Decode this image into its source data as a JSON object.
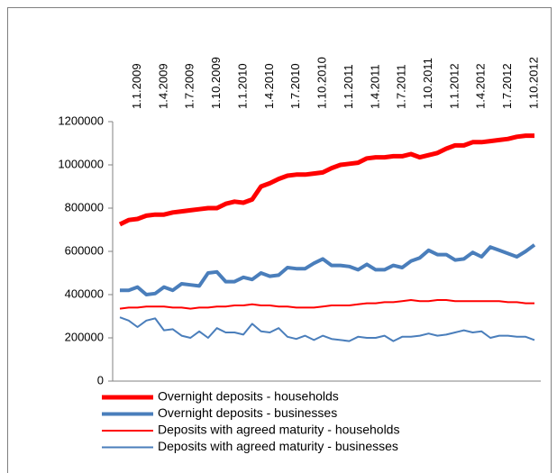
{
  "chart_data": {
    "type": "line",
    "categories": [
      null,
      null,
      "1.1.2009",
      null,
      null,
      "1.4.2009",
      null,
      null,
      "1.7.2009",
      null,
      null,
      "1.10.2009",
      null,
      null,
      "1.1.2010",
      null,
      null,
      "1.4.2010",
      null,
      null,
      "1.7.2010",
      null,
      null,
      "1.10.2010",
      null,
      null,
      "1.1.2011",
      null,
      null,
      "1.4.2011",
      null,
      null,
      "1.7.2011",
      null,
      null,
      "1.10.2011",
      null,
      null,
      "1.1.2012",
      null,
      null,
      "1.4.2012",
      null,
      null,
      "1.7.2012",
      null,
      null,
      "1.10.2012"
    ],
    "series": [
      {
        "name": "Overnight deposits - households",
        "color": "#ff0000",
        "width": 5,
        "values": [
          725000,
          745000,
          750000,
          765000,
          770000,
          770000,
          780000,
          785000,
          790000,
          795000,
          800000,
          800000,
          820000,
          830000,
          825000,
          840000,
          900000,
          915000,
          935000,
          950000,
          955000,
          955000,
          960000,
          965000,
          985000,
          1000000,
          1005000,
          1010000,
          1030000,
          1035000,
          1035000,
          1040000,
          1040000,
          1050000,
          1035000,
          1045000,
          1055000,
          1075000,
          1090000,
          1090000,
          1105000,
          1105000,
          1110000,
          1115000,
          1120000,
          1130000,
          1135000,
          1135000
        ]
      },
      {
        "name": "Overnight deposits - businesses",
        "color": "#4a7ebb",
        "width": 4,
        "values": [
          420000,
          420000,
          435000,
          400000,
          405000,
          435000,
          420000,
          450000,
          445000,
          440000,
          500000,
          505000,
          460000,
          460000,
          480000,
          470000,
          500000,
          485000,
          490000,
          525000,
          520000,
          520000,
          545000,
          565000,
          535000,
          535000,
          530000,
          515000,
          540000,
          515000,
          515000,
          535000,
          525000,
          555000,
          570000,
          605000,
          585000,
          585000,
          560000,
          565000,
          595000,
          575000,
          620000,
          605000,
          590000,
          575000,
          600000,
          630000
        ]
      },
      {
        "name": "Deposits with agreed maturity - households",
        "color": "#ff0000",
        "width": 2,
        "values": [
          335000,
          340000,
          340000,
          345000,
          345000,
          345000,
          340000,
          340000,
          335000,
          340000,
          340000,
          345000,
          345000,
          350000,
          350000,
          355000,
          350000,
          350000,
          345000,
          345000,
          340000,
          340000,
          340000,
          345000,
          350000,
          350000,
          350000,
          355000,
          360000,
          360000,
          365000,
          365000,
          370000,
          375000,
          370000,
          370000,
          375000,
          375000,
          370000,
          370000,
          370000,
          370000,
          370000,
          370000,
          365000,
          365000,
          360000,
          360000
        ]
      },
      {
        "name": "Deposits with agreed maturity - businesses",
        "color": "#4a7ebb",
        "width": 2,
        "values": [
          295000,
          280000,
          250000,
          280000,
          290000,
          235000,
          240000,
          210000,
          200000,
          230000,
          200000,
          245000,
          225000,
          225000,
          215000,
          265000,
          230000,
          225000,
          245000,
          205000,
          195000,
          210000,
          190000,
          210000,
          195000,
          190000,
          185000,
          205000,
          200000,
          200000,
          210000,
          185000,
          205000,
          205000,
          210000,
          220000,
          210000,
          215000,
          225000,
          235000,
          225000,
          230000,
          200000,
          210000,
          210000,
          205000,
          205000,
          190000
        ]
      }
    ],
    "ylim": [
      0,
      1200000
    ],
    "yticks": [
      0,
      200000,
      400000,
      600000,
      800000,
      1000000,
      1200000
    ],
    "grid": false,
    "legend": "bottom"
  }
}
